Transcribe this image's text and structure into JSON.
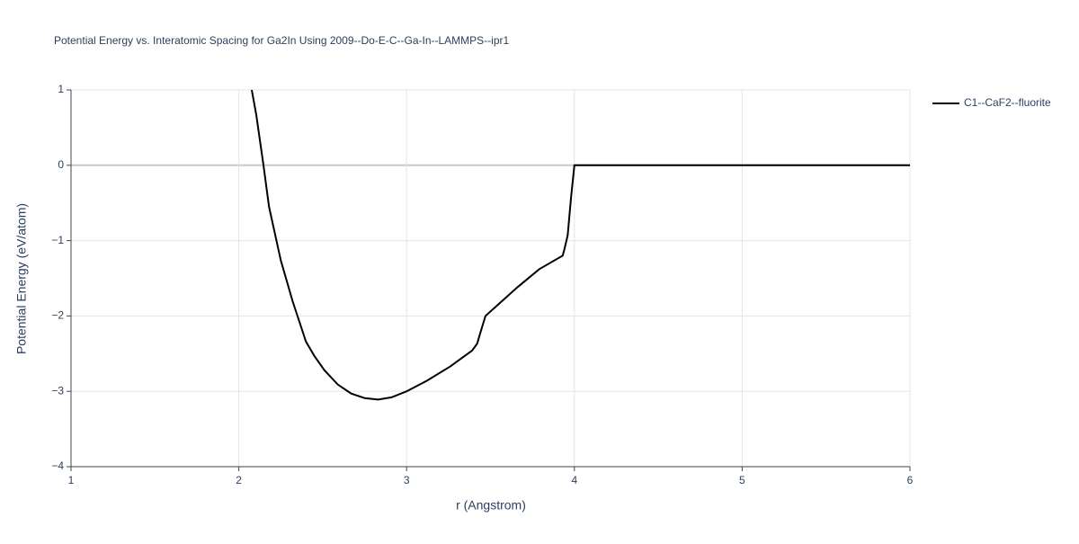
{
  "chart_data": {
    "type": "line",
    "title": "Potential Energy vs. Interatomic Spacing for Ga2In Using 2009--Do-E-C--Ga-In--LAMMPS--ipr1",
    "x_label": "r (Angstrom)",
    "y_label": "Potential Energy (eV/atom)",
    "x": [
      2.077,
      2.104,
      2.147,
      2.18,
      2.25,
      2.32,
      2.4,
      2.45,
      2.51,
      2.59,
      2.67,
      2.75,
      2.83,
      2.91,
      3.0,
      3.12,
      3.26,
      3.39,
      3.42,
      3.44,
      3.47,
      3.52,
      3.66,
      3.79,
      3.93,
      3.94,
      3.96,
      3.98,
      4.0,
      6.0
    ],
    "series": [
      {
        "name": "C1--CaF2--fluorite",
        "color": "#000000",
        "values": [
          1,
          0.67,
          0,
          -0.55,
          -1.26,
          -1.8,
          -2.34,
          -2.53,
          -2.72,
          -2.91,
          -3.03,
          -3.09,
          -3.11,
          -3.08,
          -3.0,
          -2.86,
          -2.67,
          -2.46,
          -2.37,
          -2.22,
          -2.0,
          -1.9,
          -1.62,
          -1.38,
          -1.2,
          -1.12,
          -0.93,
          -0.43,
          0,
          0
        ]
      }
    ],
    "xlim": [
      1,
      6
    ],
    "xticks": [
      1,
      2,
      3,
      4,
      5,
      6
    ],
    "ylim": [
      -4,
      1
    ],
    "yticks": [
      {
        "value": -4,
        "label": "−4"
      },
      {
        "value": -3,
        "label": "−3"
      },
      {
        "value": -2,
        "label": "−2"
      },
      {
        "value": -1,
        "label": "−1"
      },
      0,
      1
    ],
    "grid": true,
    "legend": "right"
  }
}
